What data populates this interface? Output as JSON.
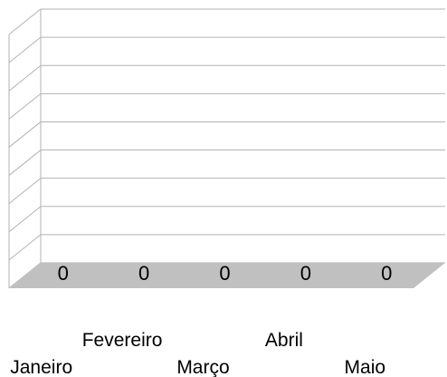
{
  "chart_data": {
    "type": "bar",
    "categories": [
      "Janeiro",
      "Fevereiro",
      "Março",
      "Abril",
      "Maio"
    ],
    "values": [
      0,
      0,
      0,
      0,
      0
    ],
    "data_labels": [
      "0",
      "0",
      "0",
      "0",
      "0"
    ],
    "title": "",
    "xlabel": "",
    "ylabel": "",
    "three_d": true,
    "grid": true,
    "legend": "none",
    "colors": {
      "background": "#ffffff",
      "grid": "#b3b3b3",
      "floor": "#c0c0c0",
      "text": "#000000"
    }
  }
}
